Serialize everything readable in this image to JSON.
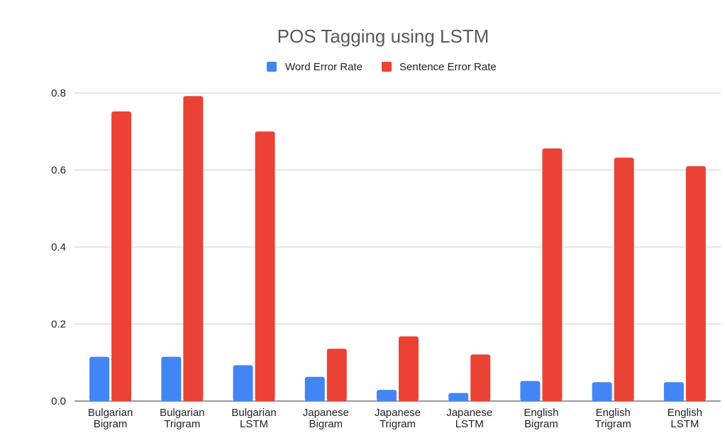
{
  "chart_data": {
    "type": "bar",
    "title": "POS Tagging using LSTM",
    "xlabel": "",
    "ylabel": "",
    "categories": [
      [
        "Bulgarian",
        "Bigram"
      ],
      [
        "Bulgarian",
        "Trigram"
      ],
      [
        "Bulgarian",
        "LSTM"
      ],
      [
        "Japanese",
        "Bigram"
      ],
      [
        "Japanese",
        "Trigram"
      ],
      [
        "Japanese",
        "LSTM"
      ],
      [
        "English",
        "Bigram"
      ],
      [
        "English",
        "Trigram"
      ],
      [
        "English",
        "LSTM"
      ]
    ],
    "series": [
      {
        "name": "Word Error Rate",
        "color": "#4285f4",
        "values": [
          0.115,
          0.115,
          0.093,
          0.063,
          0.029,
          0.021,
          0.052,
          0.049,
          0.049
        ]
      },
      {
        "name": "Sentence Error Rate",
        "color": "#ea4335",
        "values": [
          0.752,
          0.792,
          0.7,
          0.136,
          0.168,
          0.121,
          0.656,
          0.632,
          0.61
        ]
      }
    ],
    "ylim": [
      0,
      0.8
    ],
    "yticks": [
      "0.0",
      "0.2",
      "0.4",
      "0.6",
      "0.8"
    ],
    "grid": true,
    "legend_position": "top"
  }
}
